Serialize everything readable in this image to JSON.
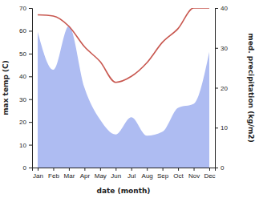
{
  "chart_data": {
    "type": "line",
    "x_label": "date (month)",
    "y_label": "max temp (C)",
    "y2_label": "med. precipitation (kg/m2)",
    "categories": [
      "Jan",
      "Feb",
      "Mar",
      "Apr",
      "May",
      "Jun",
      "Jul",
      "Aug",
      "Sep",
      "Oct",
      "Nov",
      "Dec"
    ],
    "ylim": [
      0,
      70
    ],
    "yticks": [
      0,
      10,
      20,
      30,
      40,
      50,
      60,
      70
    ],
    "y2lim": [
      0,
      40
    ],
    "y2ticks": [
      0,
      10,
      20,
      30,
      40
    ],
    "series": [
      {
        "name": "med. precipitation",
        "type": "area",
        "axis": "y2",
        "color": "#aebcf2",
        "values": [
          34,
          24.5,
          35.5,
          20,
          12,
          8.3,
          12.6,
          8,
          9,
          15,
          16,
          29
        ]
      },
      {
        "name": "max temp",
        "type": "line",
        "color": "#c8574f",
        "values": [
          67,
          66.5,
          62,
          53,
          46.5,
          37.4,
          40,
          46,
          55,
          61,
          70,
          70
        ]
      }
    ]
  }
}
